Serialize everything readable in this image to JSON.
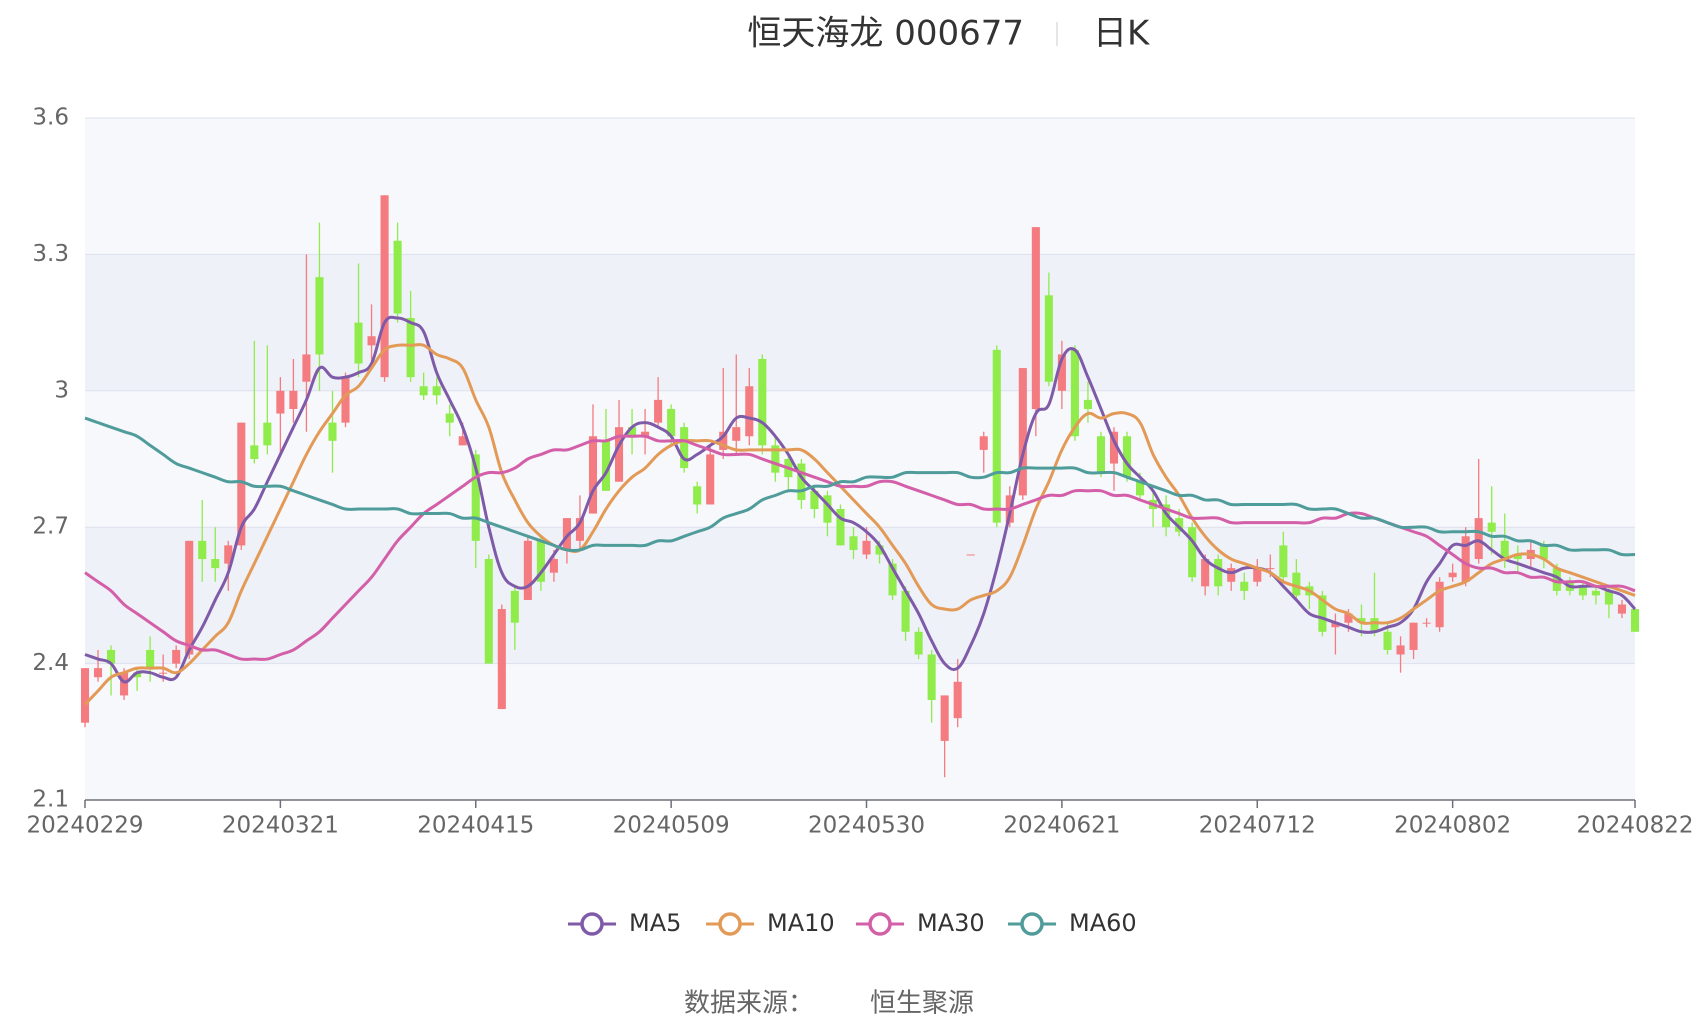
{
  "chart_data": {
    "type": "candlestick",
    "title": "恒天海龙 000677",
    "period": "日K",
    "categories": [
      "20240229",
      null,
      null,
      null,
      null,
      null,
      null,
      null,
      null,
      null,
      null,
      null,
      null,
      null,
      null,
      "20240321",
      null,
      null,
      null,
      null,
      null,
      null,
      null,
      null,
      null,
      null,
      null,
      null,
      null,
      null,
      "20240415",
      null,
      null,
      null,
      null,
      null,
      null,
      null,
      null,
      null,
      null,
      null,
      null,
      null,
      null,
      "20240509",
      null,
      null,
      null,
      null,
      null,
      null,
      null,
      null,
      null,
      null,
      null,
      null,
      null,
      null,
      "20240530",
      null,
      null,
      null,
      null,
      null,
      null,
      null,
      null,
      null,
      null,
      null,
      null,
      null,
      null,
      "20240621",
      null,
      null,
      null,
      null,
      null,
      null,
      null,
      null,
      null,
      null,
      null,
      null,
      null,
      null,
      "20240712",
      null,
      null,
      null,
      null,
      null,
      null,
      null,
      null,
      null,
      null,
      null,
      null,
      null,
      null,
      "20240802",
      null,
      null,
      null,
      null,
      null,
      null,
      null,
      null,
      null,
      null,
      null,
      null,
      null,
      "20240822"
    ],
    "candles": [
      [
        2.27,
        2.39,
        2.26,
        2.39
      ],
      [
        2.37,
        2.39,
        2.36,
        2.43
      ],
      [
        2.43,
        2.4,
        2.33,
        2.44
      ],
      [
        2.33,
        2.38,
        2.32,
        2.39
      ],
      [
        2.38,
        2.37,
        2.34,
        2.39
      ],
      [
        2.43,
        2.39,
        2.36,
        2.46
      ],
      [
        2.38,
        2.38,
        2.36,
        2.42
      ],
      [
        2.4,
        2.43,
        2.39,
        2.44
      ],
      [
        2.42,
        2.67,
        2.41,
        2.67
      ],
      [
        2.67,
        2.63,
        2.58,
        2.76
      ],
      [
        2.63,
        2.61,
        2.58,
        2.7
      ],
      [
        2.62,
        2.66,
        2.56,
        2.67
      ],
      [
        2.66,
        2.93,
        2.65,
        2.93
      ],
      [
        2.88,
        2.85,
        2.84,
        3.11
      ],
      [
        2.93,
        2.88,
        2.86,
        3.1
      ],
      [
        2.95,
        3.0,
        2.86,
        3.03
      ],
      [
        2.96,
        3.0,
        2.93,
        3.07
      ],
      [
        3.02,
        3.08,
        2.91,
        3.3
      ],
      [
        3.25,
        3.08,
        3.0,
        3.37
      ],
      [
        2.93,
        2.89,
        2.82,
        3.0
      ],
      [
        2.93,
        3.03,
        2.92,
        3.04
      ],
      [
        3.15,
        3.06,
        3.03,
        3.28
      ],
      [
        3.1,
        3.12,
        3.05,
        3.19
      ],
      [
        3.03,
        3.43,
        3.02,
        3.43
      ],
      [
        3.33,
        3.17,
        3.15,
        3.37
      ],
      [
        3.16,
        3.03,
        3.02,
        3.22
      ],
      [
        3.01,
        2.99,
        2.98,
        3.04
      ],
      [
        3.01,
        2.99,
        2.97,
        3.03
      ],
      [
        2.95,
        2.93,
        2.9,
        2.97
      ],
      [
        2.88,
        2.9,
        2.88,
        2.93
      ],
      [
        2.86,
        2.67,
        2.61,
        2.87
      ],
      [
        2.63,
        2.4,
        2.4,
        2.64
      ],
      [
        2.3,
        2.52,
        2.3,
        2.53
      ],
      [
        2.56,
        2.49,
        2.43,
        2.57
      ],
      [
        2.54,
        2.67,
        2.54,
        2.68
      ],
      [
        2.67,
        2.58,
        2.56,
        2.68
      ],
      [
        2.6,
        2.63,
        2.58,
        2.65
      ],
      [
        2.65,
        2.72,
        2.62,
        2.72
      ],
      [
        2.67,
        2.72,
        2.65,
        2.77
      ],
      [
        2.73,
        2.9,
        2.73,
        2.97
      ],
      [
        2.89,
        2.78,
        2.78,
        2.96
      ],
      [
        2.8,
        2.92,
        2.8,
        2.98
      ],
      [
        2.92,
        2.9,
        2.86,
        2.96
      ],
      [
        2.9,
        2.91,
        2.86,
        2.96
      ],
      [
        2.93,
        2.98,
        2.92,
        3.03
      ],
      [
        2.96,
        2.9,
        2.88,
        2.97
      ],
      [
        2.92,
        2.83,
        2.82,
        2.93
      ],
      [
        2.79,
        2.75,
        2.73,
        2.8
      ],
      [
        2.75,
        2.86,
        2.75,
        2.88
      ],
      [
        2.87,
        2.91,
        2.85,
        3.05
      ],
      [
        2.89,
        2.92,
        2.86,
        3.08
      ],
      [
        2.9,
        3.01,
        2.88,
        3.05
      ],
      [
        3.07,
        2.88,
        2.86,
        3.08
      ],
      [
        2.88,
        2.82,
        2.8,
        2.9
      ],
      [
        2.85,
        2.81,
        2.78,
        2.86
      ],
      [
        2.84,
        2.76,
        2.74,
        2.85
      ],
      [
        2.78,
        2.74,
        2.72,
        2.79
      ],
      [
        2.77,
        2.71,
        2.68,
        2.78
      ],
      [
        2.74,
        2.66,
        2.66,
        2.75
      ],
      [
        2.68,
        2.65,
        2.63,
        2.7
      ],
      [
        2.64,
        2.67,
        2.63,
        2.7
      ],
      [
        2.66,
        2.64,
        2.62,
        2.67
      ],
      [
        2.62,
        2.55,
        2.54,
        2.63
      ],
      [
        2.56,
        2.47,
        2.45,
        2.57
      ],
      [
        2.47,
        2.42,
        2.41,
        2.48
      ],
      [
        2.42,
        2.32,
        2.27,
        2.43
      ],
      [
        2.23,
        2.33,
        2.15,
        2.33
      ],
      [
        2.28,
        2.36,
        2.26,
        2.41
      ],
      [
        2.64,
        2.64,
        2.64,
        2.64
      ],
      [
        2.87,
        2.9,
        2.82,
        2.91
      ],
      [
        3.09,
        2.71,
        2.7,
        3.1
      ],
      [
        2.71,
        2.77,
        2.7,
        2.79
      ],
      [
        2.77,
        3.05,
        2.76,
        3.05
      ],
      [
        2.96,
        3.36,
        2.9,
        3.36
      ],
      [
        3.21,
        3.02,
        3.01,
        3.26
      ],
      [
        3.0,
        3.08,
        2.96,
        3.11
      ],
      [
        3.09,
        2.9,
        2.89,
        3.1
      ],
      [
        2.98,
        2.96,
        2.93,
        3.02
      ],
      [
        2.9,
        2.82,
        2.81,
        2.91
      ],
      [
        2.84,
        2.91,
        2.78,
        2.92
      ],
      [
        2.9,
        2.81,
        2.8,
        2.91
      ],
      [
        2.8,
        2.77,
        2.76,
        2.82
      ],
      [
        2.76,
        2.74,
        2.7,
        2.78
      ],
      [
        2.75,
        2.7,
        2.68,
        2.77
      ],
      [
        2.72,
        2.69,
        2.68,
        2.74
      ],
      [
        2.7,
        2.59,
        2.58,
        2.71
      ],
      [
        2.57,
        2.63,
        2.55,
        2.64
      ],
      [
        2.63,
        2.57,
        2.55,
        2.64
      ],
      [
        2.58,
        2.61,
        2.56,
        2.62
      ],
      [
        2.58,
        2.56,
        2.54,
        2.6
      ],
      [
        2.58,
        2.61,
        2.57,
        2.63
      ],
      [
        2.61,
        2.61,
        2.59,
        2.64
      ],
      [
        2.66,
        2.59,
        2.58,
        2.69
      ],
      [
        2.6,
        2.55,
        2.54,
        2.63
      ],
      [
        2.57,
        2.55,
        2.52,
        2.58
      ],
      [
        2.55,
        2.47,
        2.46,
        2.56
      ],
      [
        2.48,
        2.49,
        2.42,
        2.51
      ],
      [
        2.49,
        2.51,
        2.47,
        2.52
      ],
      [
        2.5,
        2.49,
        2.46,
        2.53
      ],
      [
        2.5,
        2.47,
        2.46,
        2.6
      ],
      [
        2.47,
        2.43,
        2.42,
        2.49
      ],
      [
        2.42,
        2.44,
        2.38,
        2.46
      ],
      [
        2.43,
        2.49,
        2.41,
        2.49
      ],
      [
        2.49,
        2.49,
        2.48,
        2.5
      ],
      [
        2.48,
        2.58,
        2.47,
        2.59
      ],
      [
        2.59,
        2.6,
        2.58,
        2.62
      ],
      [
        2.58,
        2.68,
        2.57,
        2.7
      ],
      [
        2.63,
        2.72,
        2.62,
        2.85
      ],
      [
        2.71,
        2.69,
        2.64,
        2.79
      ],
      [
        2.67,
        2.63,
        2.61,
        2.73
      ],
      [
        2.64,
        2.63,
        2.6,
        2.66
      ],
      [
        2.63,
        2.65,
        2.61,
        2.67
      ],
      [
        2.66,
        2.63,
        2.61,
        2.67
      ],
      [
        2.61,
        2.56,
        2.55,
        2.62
      ],
      [
        2.58,
        2.56,
        2.55,
        2.59
      ],
      [
        2.57,
        2.55,
        2.54,
        2.58
      ],
      [
        2.56,
        2.55,
        2.53,
        2.57
      ],
      [
        2.56,
        2.53,
        2.5,
        2.57
      ],
      [
        2.51,
        2.53,
        2.5,
        2.54
      ],
      [
        2.52,
        2.47,
        2.47,
        2.52
      ]
    ],
    "up_color": "#f47b7f",
    "down_color": "#8fec4a",
    "series": [
      {
        "name": "MA5",
        "color": "#7e5aa8",
        "values": [
          2.42,
          2.41,
          2.4,
          2.36,
          2.38,
          2.38,
          2.37,
          2.37,
          2.43,
          2.48,
          2.54,
          2.6,
          2.7,
          2.74,
          2.8,
          2.86,
          2.92,
          2.98,
          3.05,
          3.03,
          3.03,
          3.04,
          3.06,
          3.15,
          3.16,
          3.15,
          3.13,
          3.04,
          2.98,
          2.92,
          2.83,
          2.7,
          2.6,
          2.57,
          2.57,
          2.6,
          2.64,
          2.68,
          2.71,
          2.78,
          2.82,
          2.88,
          2.92,
          2.93,
          2.92,
          2.9,
          2.85,
          2.86,
          2.88,
          2.9,
          2.94,
          2.94,
          2.93,
          2.9,
          2.86,
          2.81,
          2.78,
          2.75,
          2.72,
          2.71,
          2.69,
          2.66,
          2.61,
          2.56,
          2.51,
          2.45,
          2.4,
          2.39,
          2.44,
          2.51,
          2.61,
          2.73,
          2.86,
          2.95,
          2.97,
          3.07,
          3.09,
          3.03,
          2.96,
          2.89,
          2.84,
          2.81,
          2.78,
          2.73,
          2.7,
          2.67,
          2.63,
          2.61,
          2.6,
          2.61,
          2.61,
          2.6,
          2.57,
          2.54,
          2.51,
          2.5,
          2.49,
          2.48,
          2.47,
          2.47,
          2.48,
          2.49,
          2.52,
          2.58,
          2.62,
          2.66,
          2.66,
          2.67,
          2.65,
          2.63,
          2.62,
          2.61,
          2.6,
          2.59,
          2.57,
          2.57,
          2.57,
          2.56,
          2.55,
          2.52
        ]
      },
      {
        "name": "MA10",
        "color": "#e39a56",
        "values": [
          2.31,
          2.34,
          2.37,
          2.38,
          2.39,
          2.39,
          2.39,
          2.38,
          2.4,
          2.43,
          2.46,
          2.49,
          2.56,
          2.62,
          2.68,
          2.74,
          2.8,
          2.86,
          2.91,
          2.95,
          2.99,
          3.01,
          3.05,
          3.09,
          3.1,
          3.1,
          3.1,
          3.08,
          3.07,
          3.05,
          2.98,
          2.92,
          2.82,
          2.76,
          2.71,
          2.68,
          2.66,
          2.65,
          2.65,
          2.69,
          2.74,
          2.78,
          2.81,
          2.83,
          2.86,
          2.88,
          2.89,
          2.89,
          2.89,
          2.88,
          2.87,
          2.87,
          2.87,
          2.87,
          2.87,
          2.87,
          2.85,
          2.82,
          2.79,
          2.76,
          2.73,
          2.7,
          2.66,
          2.62,
          2.57,
          2.53,
          2.52,
          2.52,
          2.54,
          2.55,
          2.56,
          2.59,
          2.66,
          2.74,
          2.8,
          2.87,
          2.92,
          2.95,
          2.94,
          2.95,
          2.95,
          2.93,
          2.86,
          2.81,
          2.77,
          2.72,
          2.68,
          2.65,
          2.63,
          2.62,
          2.61,
          2.6,
          2.58,
          2.57,
          2.56,
          2.54,
          2.52,
          2.51,
          2.49,
          2.49,
          2.49,
          2.5,
          2.52,
          2.54,
          2.56,
          2.57,
          2.58,
          2.6,
          2.62,
          2.63,
          2.64,
          2.64,
          2.63,
          2.61,
          2.6,
          2.59,
          2.58,
          2.57,
          2.56,
          2.55
        ]
      },
      {
        "name": "MA30",
        "color": "#d45fa9",
        "values": [
          2.6,
          2.58,
          2.56,
          2.53,
          2.51,
          2.49,
          2.47,
          2.45,
          2.44,
          2.43,
          2.43,
          2.42,
          2.41,
          2.41,
          2.41,
          2.42,
          2.43,
          2.45,
          2.47,
          2.5,
          2.53,
          2.56,
          2.59,
          2.63,
          2.67,
          2.7,
          2.73,
          2.75,
          2.77,
          2.79,
          2.81,
          2.82,
          2.82,
          2.83,
          2.85,
          2.86,
          2.87,
          2.87,
          2.88,
          2.89,
          2.89,
          2.9,
          2.9,
          2.9,
          2.89,
          2.89,
          2.89,
          2.88,
          2.87,
          2.86,
          2.86,
          2.86,
          2.85,
          2.84,
          2.83,
          2.82,
          2.81,
          2.8,
          2.79,
          2.79,
          2.79,
          2.8,
          2.8,
          2.79,
          2.78,
          2.77,
          2.76,
          2.75,
          2.75,
          2.74,
          2.74,
          2.74,
          2.75,
          2.76,
          2.77,
          2.77,
          2.78,
          2.78,
          2.78,
          2.77,
          2.77,
          2.76,
          2.75,
          2.74,
          2.73,
          2.72,
          2.72,
          2.72,
          2.71,
          2.71,
          2.71,
          2.71,
          2.71,
          2.71,
          2.71,
          2.72,
          2.72,
          2.73,
          2.73,
          2.72,
          2.71,
          2.7,
          2.69,
          2.68,
          2.66,
          2.64,
          2.62,
          2.61,
          2.61,
          2.6,
          2.6,
          2.59,
          2.59,
          2.58,
          2.58,
          2.58,
          2.57,
          2.57,
          2.57,
          2.56
        ]
      },
      {
        "name": "MA60",
        "color": "#4f9c9b",
        "values": [
          2.94,
          2.93,
          2.92,
          2.91,
          2.9,
          2.88,
          2.86,
          2.84,
          2.83,
          2.82,
          2.81,
          2.8,
          2.8,
          2.79,
          2.79,
          2.79,
          2.78,
          2.77,
          2.76,
          2.75,
          2.74,
          2.74,
          2.74,
          2.74,
          2.74,
          2.73,
          2.73,
          2.73,
          2.73,
          2.72,
          2.72,
          2.71,
          2.7,
          2.69,
          2.68,
          2.67,
          2.66,
          2.65,
          2.65,
          2.66,
          2.66,
          2.66,
          2.66,
          2.66,
          2.67,
          2.67,
          2.68,
          2.69,
          2.7,
          2.72,
          2.73,
          2.74,
          2.76,
          2.77,
          2.78,
          2.78,
          2.79,
          2.79,
          2.8,
          2.8,
          2.81,
          2.81,
          2.81,
          2.82,
          2.82,
          2.82,
          2.82,
          2.82,
          2.81,
          2.81,
          2.82,
          2.82,
          2.83,
          2.83,
          2.83,
          2.83,
          2.83,
          2.82,
          2.82,
          2.82,
          2.81,
          2.8,
          2.79,
          2.78,
          2.77,
          2.77,
          2.76,
          2.76,
          2.75,
          2.75,
          2.75,
          2.75,
          2.75,
          2.75,
          2.74,
          2.74,
          2.74,
          2.73,
          2.72,
          2.72,
          2.71,
          2.7,
          2.7,
          2.7,
          2.69,
          2.69,
          2.69,
          2.69,
          2.68,
          2.68,
          2.67,
          2.67,
          2.66,
          2.66,
          2.65,
          2.65,
          2.65,
          2.65,
          2.64,
          2.64
        ]
      }
    ],
    "ylim": [
      2.1,
      3.6
    ],
    "yticks": [
      2.1,
      2.4,
      2.7,
      3,
      3.3,
      3.6
    ],
    "grid": true,
    "legend": "bottom",
    "source_label": "数据来源：",
    "source": "恒生聚源"
  }
}
